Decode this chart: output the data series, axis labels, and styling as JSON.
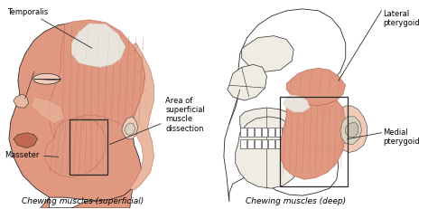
{
  "background_color": "#f5f0eb",
  "left_caption": "Chewing muscles (superficial)",
  "right_caption": "Chewing muscles (deep)",
  "label_temporalis": "Temporalis",
  "label_masseter": "Masseter",
  "label_area": "Area of\nsuperficial\nmuscle\ndissection",
  "label_lateral": "Lateral\npterygoid",
  "label_medial": "Medial\npterygoid",
  "flesh_base": "#d9836a",
  "flesh_mid": "#e09880",
  "flesh_light": "#eab8a0",
  "flesh_highlight": "#f2cbb8",
  "flesh_dark": "#c06850",
  "tendon_color": "#d8d0c0",
  "tendon_white": "#e8e4dc",
  "bone_white": "#f0ece4",
  "line_dark": "#2a2a2a",
  "line_mid": "#555555",
  "stripe_color": "#c07060",
  "caption_fontsize": 6.5,
  "label_fontsize": 6.0
}
